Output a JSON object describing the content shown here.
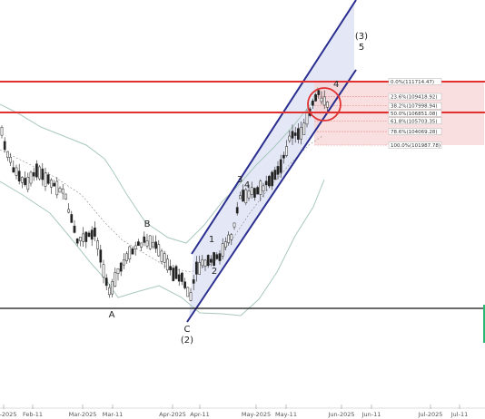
{
  "chart_data": {
    "type": "candlestick",
    "title": "",
    "x_tick_labels": [
      "Jan-2025",
      "Feb-11",
      "Mar-2025",
      "Mar-11",
      "Apr-2025",
      "Apr-11",
      "May-2025",
      "May-11",
      "Jun-2025",
      "Jun-11",
      "Jul-2025",
      "Jul-11"
    ],
    "y_axis": {
      "visible": false,
      "price_range": [
        101000,
        113000
      ]
    },
    "colors": {
      "candle": "#222222",
      "channel": "#2a2f8f",
      "channel_fill": "#dfe3f4",
      "bollinger": "#a9c8bd",
      "resistance": "#e03030",
      "fib_fill": "#f7d2d2",
      "support": "#111111",
      "circle": "#e03030",
      "accent_green": "#2bb673"
    },
    "fibonacci_levels": [
      {
        "label": "0.0%(111714.47)",
        "price": 111714.47
      },
      {
        "label": "23.6%(109418.92)",
        "price": 109418.92
      },
      {
        "label": "38.2%(107998.94)",
        "price": 107998.94
      },
      {
        "label": "50.0%(106851.08)",
        "price": 106851.08
      },
      {
        "label": "61.8%(105703.35)",
        "price": 105703.35
      },
      {
        "label": "78.6%(104069.28)",
        "price": 104069.28
      },
      {
        "label": "100.0%(101987.78)",
        "price": 101987.78
      }
    ],
    "wave_labels": [
      {
        "label": "A"
      },
      {
        "label": "B"
      },
      {
        "label": "C"
      },
      {
        "label": "(2)"
      },
      {
        "label": "1"
      },
      {
        "label": "2"
      },
      {
        "label": "3"
      },
      {
        "label": "4"
      },
      {
        "label": "(3)"
      },
      {
        "label": "5"
      }
    ],
    "annotations": {
      "resistance_lines": 2,
      "support_lines": 1,
      "channel": "ascending",
      "highlight": "circle at recent high"
    }
  }
}
